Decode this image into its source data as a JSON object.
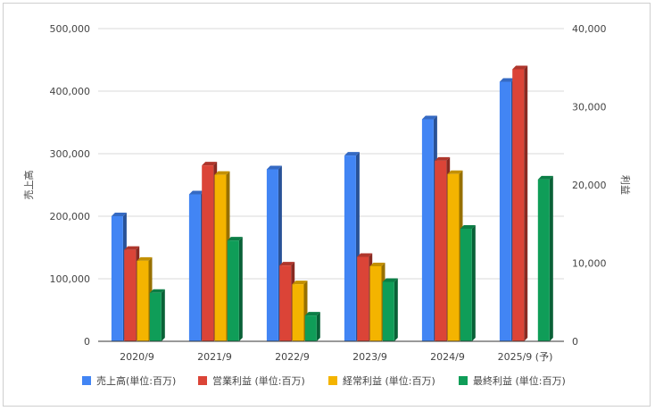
{
  "chart_data": {
    "type": "bar",
    "categories": [
      "2020/9",
      "2021/9",
      "2022/9",
      "2023/9",
      "2024/9",
      "2025/9 (予)"
    ],
    "series": [
      {
        "name": "売上高(単位:百万)",
        "axis": "left",
        "color": "#4285f4",
        "values": [
          200000,
          235000,
          275000,
          297000,
          355000,
          415000
        ]
      },
      {
        "name": "営業利益 (単位:百万)",
        "axis": "right",
        "color": "#db4437",
        "values": [
          11700,
          22500,
          9700,
          10800,
          23100,
          34800
        ]
      },
      {
        "name": "経常利益 (単位:百万)",
        "axis": "right",
        "color": "#f4b400",
        "values": [
          10300,
          21300,
          7300,
          9600,
          21400,
          null
        ]
      },
      {
        "name": "最終利益 (単位:百万)",
        "axis": "right",
        "color": "#0f9d58",
        "values": [
          6200,
          12900,
          3300,
          7600,
          14400,
          20700
        ]
      }
    ],
    "left_axis": {
      "label": "売上高",
      "min": 0,
      "max": 500000,
      "ticks": [
        "0",
        "100,000",
        "200,000",
        "300,000",
        "400,000",
        "500,000"
      ]
    },
    "right_axis": {
      "label": "利益",
      "min": 0,
      "max": 40000,
      "ticks": [
        "0",
        "10,000",
        "20,000",
        "30,000",
        "40,000"
      ]
    },
    "grid": true,
    "legend_position": "bottom"
  }
}
